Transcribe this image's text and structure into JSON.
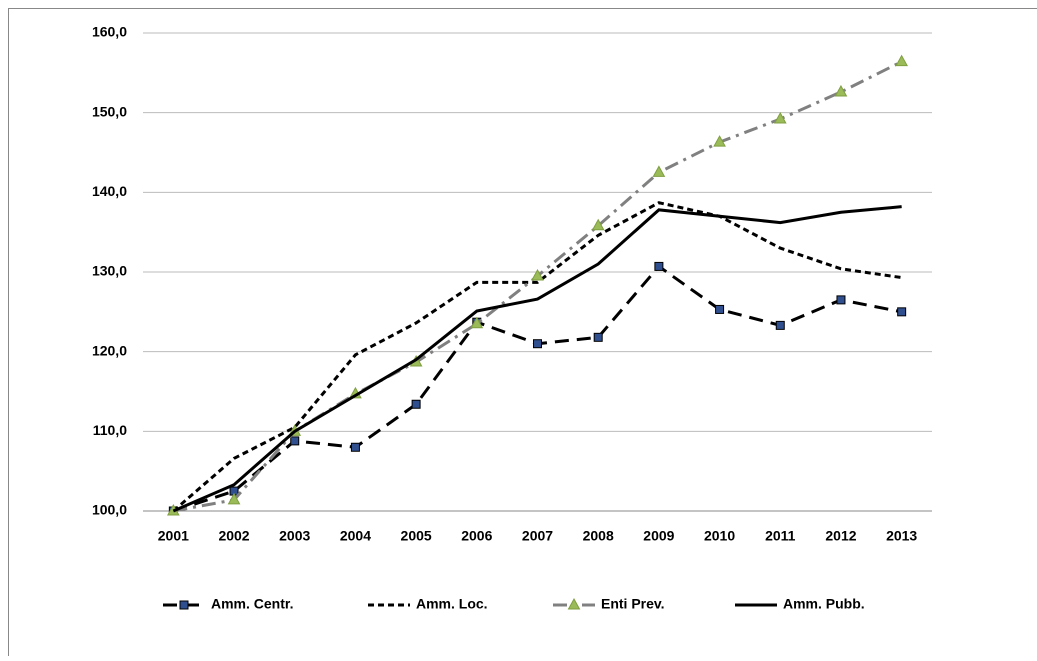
{
  "chart_data": {
    "type": "line",
    "categories": [
      "2001",
      "2002",
      "2003",
      "2004",
      "2005",
      "2006",
      "2007",
      "2008",
      "2009",
      "2010",
      "2011",
      "2012",
      "2013"
    ],
    "ylim": [
      100,
      160
    ],
    "yticks": [
      {
        "value": 100,
        "label": "100,0"
      },
      {
        "value": 110,
        "label": "110,0"
      },
      {
        "value": 120,
        "label": "120,0"
      },
      {
        "value": 130,
        "label": "130,0"
      },
      {
        "value": 140,
        "label": "140,0"
      },
      {
        "value": 150,
        "label": "150,0"
      },
      {
        "value": 160,
        "label": "160,0"
      }
    ],
    "grid": true,
    "legend": "bottom",
    "series": [
      {
        "name": "Amm. Centr.",
        "color": "#000000",
        "dash": "14,8",
        "marker": "square",
        "marker_color": "#2f4f8f",
        "values": [
          100,
          102.5,
          108.8,
          108.0,
          113.4,
          123.7,
          121.0,
          121.8,
          130.7,
          125.3,
          123.3,
          126.5,
          125.0
        ]
      },
      {
        "name": "Amm. Loc.",
        "color": "#000000",
        "dash": "6,4",
        "values": [
          100,
          106.6,
          110.5,
          119.6,
          123.6,
          128.7,
          128.7,
          134.6,
          138.7,
          137.0,
          133.0,
          130.4,
          129.3
        ]
      },
      {
        "name": "Enti Prev.",
        "color": "#808080",
        "dash": "14,6,3,6",
        "marker": "triangle",
        "marker_color": "#9bbb59",
        "values": [
          100,
          101.4,
          110.0,
          114.7,
          118.7,
          123.5,
          129.5,
          135.8,
          142.5,
          146.3,
          149.2,
          152.6,
          156.4
        ]
      },
      {
        "name": "Amm. Pubb.",
        "color": "#000000",
        "values": [
          100,
          103.3,
          110.0,
          114.5,
          119.0,
          125.1,
          126.6,
          131.0,
          137.8,
          137.0,
          136.2,
          137.5,
          138.2
        ]
      }
    ]
  }
}
